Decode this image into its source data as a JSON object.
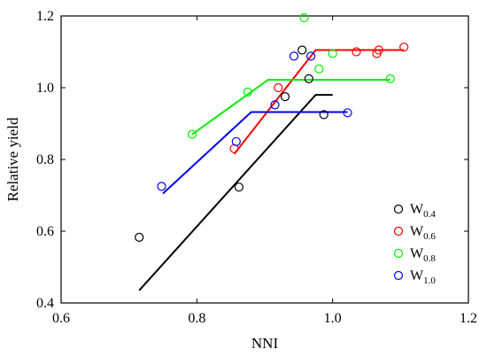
{
  "chart_data": {
    "type": "scatter",
    "title": "",
    "xlabel": "NNI",
    "ylabel": "Relative yield",
    "xlim": [
      0.6,
      1.2
    ],
    "ylim": [
      0.4,
      1.2
    ],
    "xticks": [
      0.6,
      0.8,
      1.0,
      1.2
    ],
    "yticks": [
      0.4,
      0.6,
      0.8,
      1.0,
      1.2
    ],
    "xtick_labels": [
      "0.6",
      "0.8",
      "1.0",
      "1.2"
    ],
    "ytick_labels": [
      "0.4",
      "0.6",
      "0.8",
      "1.0",
      "1.2"
    ],
    "grid": false,
    "legend_position": "bottom-right",
    "series": [
      {
        "name_main": "W",
        "name_sub": "0.4",
        "color": "#000000",
        "points": [
          [
            0.715,
            0.583
          ],
          [
            0.862,
            0.723
          ],
          [
            0.93,
            0.975
          ],
          [
            0.955,
            1.105
          ],
          [
            0.965,
            1.025
          ],
          [
            0.987,
            0.925
          ]
        ],
        "fit_line": [
          [
            0.715,
            0.435
          ],
          [
            0.975,
            0.98
          ],
          [
            1.0,
            0.98
          ]
        ]
      },
      {
        "name_main": "W",
        "name_sub": "0.6",
        "color": "#ff0000",
        "points": [
          [
            0.855,
            0.83
          ],
          [
            0.92,
            1.0
          ],
          [
            1.035,
            1.1
          ],
          [
            1.065,
            1.095
          ],
          [
            1.068,
            1.105
          ],
          [
            1.105,
            1.113
          ]
        ],
        "fit_line": [
          [
            0.855,
            0.815
          ],
          [
            0.975,
            1.105
          ],
          [
            1.105,
            1.105
          ]
        ]
      },
      {
        "name_main": "W",
        "name_sub": "0.8",
        "color": "#00ee00",
        "points": [
          [
            0.793,
            0.87
          ],
          [
            0.875,
            0.988
          ],
          [
            0.958,
            1.195
          ],
          [
            0.98,
            1.052
          ],
          [
            1.0,
            1.095
          ],
          [
            1.085,
            1.025
          ]
        ],
        "fit_line": [
          [
            0.793,
            0.87
          ],
          [
            0.905,
            1.022
          ],
          [
            1.085,
            1.022
          ]
        ]
      },
      {
        "name_main": "W",
        "name_sub": "1.0",
        "color": "#0000ee",
        "points": [
          [
            0.748,
            0.725
          ],
          [
            0.858,
            0.85
          ],
          [
            0.915,
            0.952
          ],
          [
            0.943,
            1.088
          ],
          [
            0.968,
            1.088
          ],
          [
            1.022,
            0.93
          ]
        ],
        "fit_line": [
          [
            0.75,
            0.705
          ],
          [
            0.88,
            0.932
          ],
          [
            1.022,
            0.932
          ]
        ]
      }
    ]
  }
}
